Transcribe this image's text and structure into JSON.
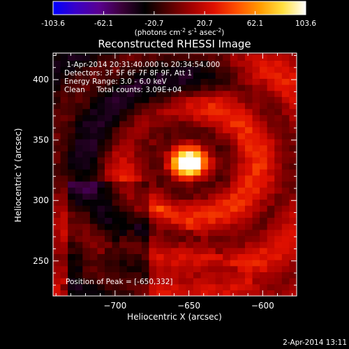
{
  "colorbar": {
    "ticks": [
      "-103.6",
      "-62.1",
      "-20.7",
      "20.7",
      "62.1",
      "103.6"
    ],
    "units_main": "(photons cm",
    "units_exp1": "-2",
    "units_mid": " s",
    "units_exp2": "-1",
    "units_end": " asec",
    "units_exp3": "-2",
    "units_close": ")",
    "colors": [
      "#0000ff",
      "#3a00c8",
      "#5a0090",
      "#3a0038",
      "#000000",
      "#500000",
      "#a00000",
      "#e01000",
      "#ff5000",
      "#ff9a00",
      "#ffe040",
      "#ffffff"
    ]
  },
  "plot": {
    "title": "Reconstructed RHESSI Image",
    "info_lines": [
      " 1-Apr-2014 20:31:40.000 to 20:34:54.000",
      "Detectors: 3F 5F 6F 7F 8F 9F, Att 1",
      "Energy Range: 3.0 - 6.0 keV",
      "Clean     Total counts: 3.09E+04"
    ],
    "peak_label": "Position of Peak = [-650,332]",
    "footer_date": "2-Apr-2014 13:11"
  },
  "chart_data": {
    "type": "heatmap",
    "title": "Reconstructed RHESSI Image",
    "xlabel": "Heliocentric X (arcsec)",
    "ylabel": "Heliocentric Y (arcsec)",
    "xlim": [
      -742,
      -577
    ],
    "ylim": [
      221,
      422
    ],
    "xticks": [
      -700,
      -650,
      -600
    ],
    "yticks": [
      250,
      300,
      350,
      400
    ],
    "colorbar_range": [
      -103.6,
      103.6
    ],
    "peak": {
      "x": -650,
      "y": 332,
      "value": 103.6
    },
    "colormap": "blue-purple-black-red-orange-yellow-white"
  }
}
